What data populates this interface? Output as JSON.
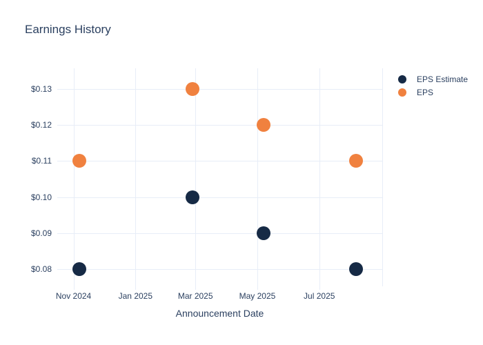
{
  "title": "Earnings History",
  "colors": {
    "background": "#ffffff",
    "text": "#2a3f5f",
    "grid": "#e7edf7",
    "eps_estimate": "#162a45",
    "eps": "#f0813f"
  },
  "legend": {
    "items": [
      {
        "label": "EPS Estimate",
        "color": "#162a45"
      },
      {
        "label": "EPS",
        "color": "#f0813f"
      }
    ],
    "position": "top-right-outside"
  },
  "chart_data": {
    "type": "scatter",
    "title": "Earnings History",
    "xlabel": "Announcement Date",
    "ylabel": "",
    "grid": true,
    "xlim": [
      "2024-10-16",
      "2025-09-01"
    ],
    "ylim": [
      0.0753,
      0.1357
    ],
    "x_ticks": [
      {
        "date": "2024-11-01",
        "label": "Nov 2024"
      },
      {
        "date": "2025-01-01",
        "label": "Jan 2025"
      },
      {
        "date": "2025-03-01",
        "label": "Mar 2025"
      },
      {
        "date": "2025-05-01",
        "label": "May 2025"
      },
      {
        "date": "2025-07-01",
        "label": "Jul 2025"
      },
      {
        "date": "2025-09-01",
        "label": ""
      }
    ],
    "y_ticks": [
      {
        "value": 0.13,
        "label": "$0.13"
      },
      {
        "value": 0.12,
        "label": "$0.12"
      },
      {
        "value": 0.11,
        "label": "$0.11"
      },
      {
        "value": 0.1,
        "label": "$0.10"
      },
      {
        "value": 0.09,
        "label": "$0.09"
      },
      {
        "value": 0.08,
        "label": "$0.08"
      }
    ],
    "series": [
      {
        "name": "EPS Estimate",
        "color": "#162a45",
        "points": [
          {
            "x": "2024-11-07",
            "y": 0.08
          },
          {
            "x": "2025-02-26",
            "y": 0.1
          },
          {
            "x": "2025-05-07",
            "y": 0.09
          },
          {
            "x": "2025-08-06",
            "y": 0.08
          }
        ]
      },
      {
        "name": "EPS",
        "color": "#f0813f",
        "points": [
          {
            "x": "2024-11-07",
            "y": 0.11
          },
          {
            "x": "2025-02-26",
            "y": 0.13
          },
          {
            "x": "2025-05-07",
            "y": 0.12
          },
          {
            "x": "2025-08-06",
            "y": 0.11
          }
        ]
      }
    ]
  }
}
